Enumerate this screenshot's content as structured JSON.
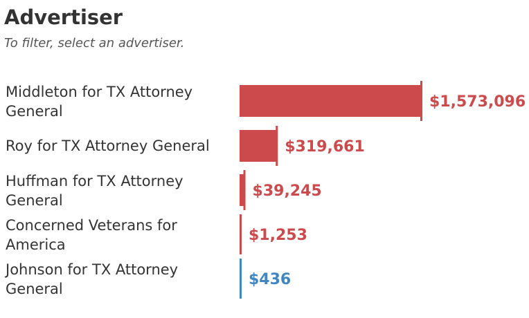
{
  "header": {
    "title": "Advertiser",
    "subtitle": "To filter, select an advertiser."
  },
  "colors": {
    "primary": "#cc4a4c",
    "secondary": "#3f87c2",
    "text": "#333333"
  },
  "chart_data": {
    "type": "bar",
    "orientation": "horizontal",
    "title": "Advertiser",
    "xlabel": "",
    "ylabel": "",
    "categories": [
      [
        "Middleton for TX Attorney",
        "General"
      ],
      [
        "Roy for TX Attorney General"
      ],
      [
        "Huffman for TX Attorney",
        "General"
      ],
      [
        "Concerned Veterans for",
        "America"
      ],
      [
        "Johnson for TX Attorney",
        "General"
      ]
    ],
    "values": [
      1573096,
      319661,
      39245,
      1253,
      436
    ],
    "value_labels": [
      "$1,573,096",
      "$319,661",
      "$39,245",
      "$1,253",
      "$436"
    ],
    "bar_colors": [
      "#cc4a4c",
      "#cc4a4c",
      "#cc4a4c",
      "#cc4a4c",
      "#3f87c2"
    ],
    "xlim": [
      0,
      1573096
    ],
    "grid": false,
    "legend": "none"
  }
}
